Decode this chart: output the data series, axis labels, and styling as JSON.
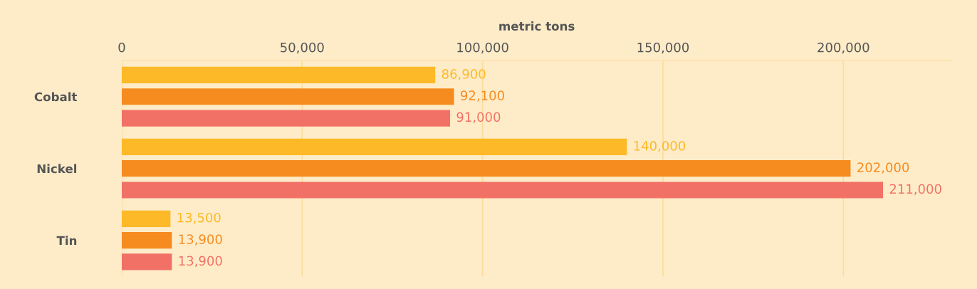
{
  "chart_data": {
    "type": "bar",
    "orientation": "horizontal",
    "xlabel": "metric tons",
    "categories": [
      "Cobalt",
      "Nickel",
      "Tin"
    ],
    "series": [
      {
        "color": "#fdb927",
        "values": [
          86900,
          140000,
          13500
        ],
        "value_labels": [
          "86,900",
          "140,000",
          "13,500"
        ]
      },
      {
        "color": "#f68b1f",
        "values": [
          92100,
          202000,
          13900
        ],
        "value_labels": [
          "92,100",
          "202,000",
          "13,900"
        ]
      },
      {
        "color": "#f27166",
        "values": [
          91000,
          211000,
          13900
        ],
        "value_labels": [
          "91,000",
          "211,000",
          "13,900"
        ]
      }
    ],
    "xlim": [
      0,
      230000
    ],
    "xticks": [
      {
        "value": 0,
        "label": "0"
      },
      {
        "value": 50000,
        "label": "50,000"
      },
      {
        "value": 100000,
        "label": "100,000"
      },
      {
        "value": 150000,
        "label": "150,000"
      },
      {
        "value": 200000,
        "label": "200,000"
      }
    ],
    "grid": "x"
  }
}
